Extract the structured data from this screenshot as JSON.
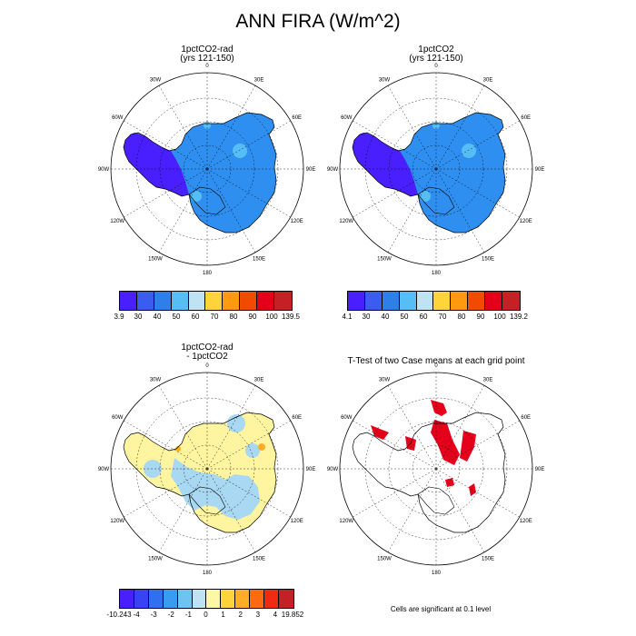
{
  "title": "ANN FIRA (W/m^2)",
  "longitude_labels": [
    "0",
    "30E",
    "60E",
    "90E",
    "120E",
    "150E",
    "180",
    "150W",
    "120W",
    "90W",
    "60W",
    "30W"
  ],
  "panels": [
    {
      "title_line1": "1pctCO2-rad",
      "title_line2": "(yrs 121-150)"
    },
    {
      "title_line1": "1pctCO2",
      "title_line2": "(yrs 121-150)"
    },
    {
      "title_line1": "1pctCO2-rad",
      "title_line2": "- 1pctCO2"
    },
    {
      "title_line1": "T-Test of two Case means at each grid point",
      "title_line2": ""
    }
  ],
  "colorbars": [
    {
      "labels": [
        "3.9",
        "30",
        "40",
        "50",
        "60",
        "70",
        "80",
        "90",
        "100",
        "139.5"
      ],
      "colors": [
        "#4a1fff",
        "#3a5cf0",
        "#2f7fe8",
        "#56bdf5",
        "#bfe3f3",
        "#ffd33a",
        "#ff9a10",
        "#f24b00",
        "#e4001b",
        "#c42026"
      ]
    },
    {
      "labels": [
        "4.1",
        "30",
        "40",
        "50",
        "60",
        "70",
        "80",
        "90",
        "100",
        "139.2"
      ],
      "colors": [
        "#4a1fff",
        "#3a5cf0",
        "#2f7fe8",
        "#56bdf5",
        "#bfe3f3",
        "#ffd33a",
        "#ff9a10",
        "#f24b00",
        "#e4001b",
        "#c42026"
      ]
    },
    {
      "labels": [
        "-10.243",
        "-4",
        "-3",
        "-2",
        "-1",
        "0",
        "1",
        "2",
        "3",
        "4",
        "19.852"
      ],
      "colors": [
        "#4a1fff",
        "#3a42f5",
        "#2f6ff0",
        "#3a9cf0",
        "#6ec3f0",
        "#bfe3f3",
        "#fff7a8",
        "#ffd33a",
        "#ffad25",
        "#ff6a10",
        "#ef2b14",
        "#c42026"
      ]
    }
  ],
  "ttest_note": "Cells are significant at 0.1 level",
  "colors": {
    "coast": "#000000",
    "grid": "#000000",
    "primary_field": "#2f8ff0",
    "deep_blue": "#4a1fff",
    "diff_land": "#fff5a0",
    "diff_low": "#a9d8f2",
    "significant": "#e4001b"
  }
}
